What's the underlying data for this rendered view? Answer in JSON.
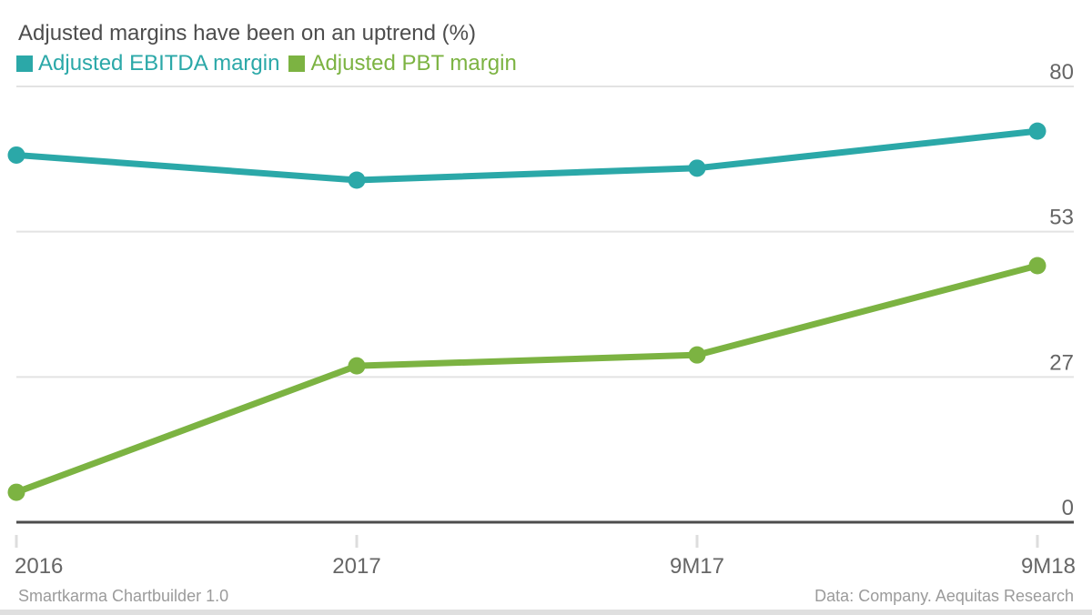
{
  "title": "Adjusted margins have been on an uptrend (%)",
  "legend": [
    {
      "label": "Adjusted EBITDA margin",
      "color": "#2BA8A8"
    },
    {
      "label": "Adjusted PBT margin",
      "color": "#7CB342"
    }
  ],
  "footer": {
    "left": "Smartkarma Chartbuilder 1.0",
    "right": "Data: Company. Aequitas Research"
  },
  "colors": {
    "teal": "#2BA8A8",
    "green": "#7CB342",
    "gridline": "#E3E3E3",
    "baseline": "#4D4D4D",
    "tick": "#DDDDDD",
    "axis_text": "#666666",
    "title_text": "#4D4D4D",
    "footer_text": "#9B9B9B"
  },
  "chart_data": {
    "type": "line",
    "title": "Adjusted margins have been on an uptrend (%)",
    "categories": [
      "2016",
      "2017",
      "9M17",
      "9M18"
    ],
    "series": [
      {
        "name": "Adjusted EBITDA margin",
        "color": "#2BA8A8",
        "values": [
          67.4,
          62.8,
          65.0,
          71.8
        ]
      },
      {
        "name": "Adjusted PBT margin",
        "color": "#7CB342",
        "values": [
          5.5,
          28.7,
          30.7,
          47.1
        ]
      }
    ],
    "xlabel": "",
    "ylabel": "",
    "unit": "%",
    "ylim": [
      0,
      80
    ],
    "y_ticks": [
      {
        "value": 0,
        "label": "0"
      },
      {
        "value": 26.667,
        "label": "27"
      },
      {
        "value": 53.333,
        "label": "53"
      },
      {
        "value": 80,
        "label": "80"
      }
    ],
    "grid": "horizontal",
    "y_axis_side": "right",
    "legend_position": "top-left",
    "marker": "circle"
  }
}
